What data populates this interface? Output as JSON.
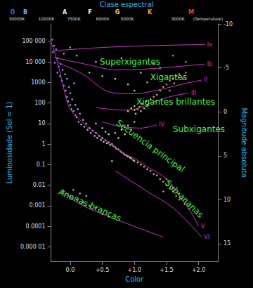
{
  "chart_data": {
    "type": "scatter",
    "title": "Clase espectral",
    "spectral_classes": [
      {
        "label": "O",
        "color": "#3a6cff"
      },
      {
        "label": "B",
        "color": "#6fa8ff"
      },
      {
        "label": "A",
        "color": "#dfe6ff"
      },
      {
        "label": "F",
        "color": "#fff6c8"
      },
      {
        "label": "G",
        "color": "#ffd23c"
      },
      {
        "label": "K",
        "color": "#ff9a2a"
      },
      {
        "label": "M",
        "color": "#ff3a1a"
      }
    ],
    "temperatures": [
      "30000K",
      "10000K",
      "7500K",
      "6000K",
      "5000K",
      "3000K",
      "(Temperature)"
    ],
    "annotations": [
      "Superxigantes",
      "Xigantes",
      "Xigantes brillantes",
      "Subxigantes",
      "Secuencia principal",
      "Sub-ananas",
      "Ananas brancas"
    ],
    "x_label": "Color",
    "y_label": "Luminosidade (Sol = 1)",
    "y2_label": "Magnitude absoluta",
    "log": "y",
    "grid": false,
    "xlim": [
      -0.3,
      2.3
    ],
    "xticks": [
      {
        "value": 0,
        "label": "0.0"
      },
      {
        "value": 0.5,
        "label": "+0.5"
      },
      {
        "value": 1,
        "label": "+1.0"
      },
      {
        "value": 1.5,
        "label": "+1.5"
      },
      {
        "value": 2,
        "label": "+2.0"
      }
    ],
    "ylim": [
      2e-06,
      700000
    ],
    "yticks": [
      {
        "value": 100000,
        "label": "100 000"
      },
      {
        "value": 10000,
        "label": "10 000"
      },
      1000,
      100,
      10,
      1,
      0.1,
      0.01,
      0.001,
      0.0001,
      {
        "value": 1e-05,
        "label": "0.000 01"
      }
    ],
    "y2lim": [
      17,
      -10
    ],
    "y2ticks": [
      -10,
      -5,
      0,
      5,
      10,
      15
    ],
    "series": [
      {
        "type": "scatter",
        "x": [
          -0.28,
          -0.25,
          -0.27,
          -0.22,
          -0.2,
          -0.24,
          -0.18,
          -0.2,
          -0.15,
          -0.16,
          -0.12,
          -0.13,
          -0.1,
          -0.08,
          -0.07,
          -0.05,
          -0.05,
          -0.03,
          -0.02,
          0.0,
          0.0,
          0.02,
          0.03,
          0.05,
          0.06,
          0.08,
          0.08,
          0.1,
          0.12,
          0.13,
          0.15,
          0.17,
          0.2,
          0.22,
          0.25,
          0.27,
          0.3,
          0.32,
          0.35,
          0.38,
          0.4,
          0.42,
          0.45,
          0.48,
          0.5,
          0.52,
          0.55,
          0.57,
          0.6,
          0.62,
          0.65,
          0.67,
          0.7,
          0.72,
          0.75,
          0.78,
          0.8,
          0.83,
          0.85,
          0.88,
          0.9,
          0.93,
          0.95,
          0.98,
          1.0,
          1.05,
          1.1,
          1.15,
          1.2,
          1.25,
          1.3,
          1.35,
          1.4,
          1.45,
          1.5,
          1.55,
          1.6,
          1.65,
          1.7,
          1.78,
          1.85,
          0.4,
          0.5,
          0.55,
          0.6,
          0.7,
          0.75,
          0.8,
          0.85,
          0.9,
          0.95,
          1.0,
          0.9,
          0.95,
          1.0,
          1.0,
          1.02,
          1.05,
          1.08,
          1.1,
          1.12,
          1.15,
          1.18,
          1.2,
          1.25,
          1.3,
          1.35,
          1.4,
          1.45,
          1.5,
          1.55,
          1.6,
          1.65,
          1.7,
          1.55,
          1.62,
          1.8,
          1.75,
          0.3,
          0.5,
          0.7,
          0.9,
          1.0,
          1.2,
          0.1,
          0.4,
          0.8,
          1.3,
          1.6,
          1.8,
          0.0,
          -0.1,
          1.1,
          1.4,
          1.5,
          1.6,
          1.45,
          1.7,
          -0.1,
          0.0,
          0.05,
          0.1,
          0.15,
          0.2,
          0.3,
          0.4,
          0.5,
          0.6,
          0.25,
          0.65
        ],
        "values": [
          120000,
          60000,
          30000,
          40000,
          15000,
          9000,
          6000,
          3000,
          8000,
          2000,
          4000,
          1200,
          700,
          2500,
          400,
          1500,
          200,
          120,
          600,
          80,
          300,
          50,
          150,
          40,
          900,
          25,
          80,
          20,
          50,
          12,
          30,
          9,
          15,
          7,
          10,
          5,
          6,
          3.5,
          4.5,
          2.5,
          3.5,
          2,
          2.5,
          1.6,
          2,
          1.3,
          1.5,
          1.1,
          1.2,
          0.9,
          1,
          0.8,
          0.7,
          0.6,
          0.55,
          0.45,
          0.4,
          0.35,
          0.3,
          0.28,
          0.25,
          0.22,
          0.2,
          0.17,
          0.15,
          0.13,
          0.1,
          0.08,
          0.06,
          0.05,
          0.035,
          0.03,
          0.02,
          0.015,
          0.01,
          0.007,
          0.005,
          0.003,
          0.002,
          0.0012,
          0.0007,
          10,
          6,
          4,
          3,
          3.5,
          2,
          5,
          3,
          8,
          5,
          12,
          40,
          55,
          45,
          70,
          30,
          50,
          65,
          40,
          90,
          55,
          120,
          80,
          150,
          200,
          250,
          400,
          600,
          800,
          1200,
          1500,
          2000,
          2500,
          400,
          900,
          3000,
          1500,
          3000,
          2000,
          1500,
          800,
          400,
          1000,
          20000,
          10000,
          15000,
          8000,
          20000,
          10000,
          50000,
          25000,
          3000,
          5000,
          0.02,
          0.008,
          0.005,
          0.004,
          0.005,
          0.003,
          0.006,
          0.002,
          0.004,
          0.0015,
          0.001,
          0.0008,
          0.0004,
          0.0003,
          0.003,
          0.15
        ]
      },
      {
        "type": "line",
        "name": "Ia",
        "color": "#cc33cc",
        "x": [
          -0.25,
          0.5,
          1.0,
          1.5,
          2.1
        ],
        "values": [
          35000,
          50000,
          58000,
          64000,
          70000
        ]
      },
      {
        "type": "line",
        "name": "Ib",
        "color": "#cc33cc",
        "x": [
          -0.25,
          0.3,
          0.7,
          1.2,
          1.7,
          2.1
        ],
        "values": [
          16000,
          7000,
          4000,
          4500,
          6000,
          7800
        ]
      },
      {
        "type": "line",
        "name": "II",
        "color": "#cc33cc",
        "x": [
          -0.2,
          0.2,
          0.6,
          1.0,
          1.4,
          1.8,
          2.05
        ],
        "values": [
          9500,
          2500,
          350,
          280,
          450,
          900,
          1300
        ]
      },
      {
        "type": "line",
        "name": "III",
        "color": "#cc33cc",
        "x": [
          0.4,
          0.8,
          1.0,
          1.3,
          1.6,
          1.85
        ],
        "values": [
          60,
          45,
          50,
          110,
          220,
          300
        ]
      },
      {
        "type": "line",
        "name": "IV",
        "color": "#cc33cc",
        "x": [
          0.5,
          0.8,
          1.1,
          1.35
        ],
        "values": [
          12,
          7,
          6,
          8.5
        ]
      },
      {
        "type": "line",
        "name": "V",
        "color": "#cc33cc",
        "x": [
          -0.3,
          -0.2,
          -0.1,
          0.0,
          0.3,
          0.6,
          0.8,
          1.0,
          1.2,
          1.5,
          1.7,
          1.9,
          2.0
        ],
        "values": [
          100000,
          10000,
          500,
          50,
          6,
          1.2,
          0.4,
          0.2,
          0.08,
          0.02,
          0.003,
          0.0004,
          0.0001
        ]
      },
      {
        "type": "line",
        "name": "VI",
        "color": "#cc33cc",
        "x": [
          0.7,
          1.2,
          1.6,
          2.05
        ],
        "values": [
          0.05,
          0.005,
          0.0008,
          3e-05
        ]
      },
      {
        "type": "line",
        "color": "#cc33cc",
        "x": [
          -0.15,
          0.2,
          0.6,
          1.0,
          1.45
        ],
        "values": [
          0.005,
          0.001,
          0.0003,
          0.0001,
          3e-05
        ]
      }
    ]
  }
}
